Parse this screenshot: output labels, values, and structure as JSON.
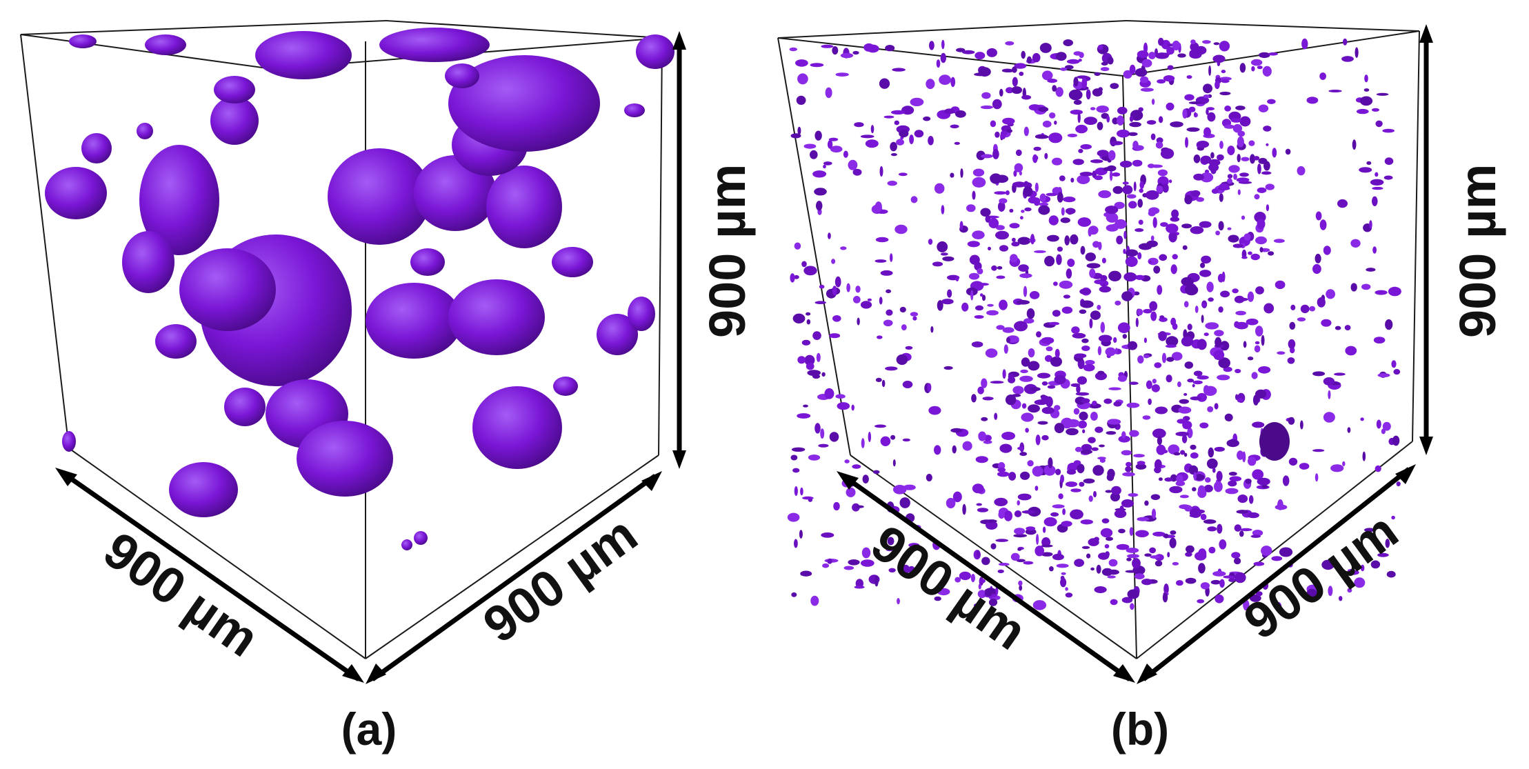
{
  "colors": {
    "pore": "#7a16d6",
    "pore_dark": "#4a0a8a",
    "pore_light": "#a060f0",
    "edge": "#1a1a1a",
    "arrow": "#000000"
  },
  "panels": [
    {
      "id": "a",
      "caption": "(a)",
      "dims": {
        "left": "900 µm",
        "right": "900 µm",
        "vertical": "900 µm"
      },
      "structure": "large spherical pores"
    },
    {
      "id": "b",
      "caption": "(b)",
      "dims": {
        "left": "900 µm",
        "right": "900 µm",
        "vertical": "900 µm"
      },
      "structure": "fine dispersed pores"
    }
  ]
}
